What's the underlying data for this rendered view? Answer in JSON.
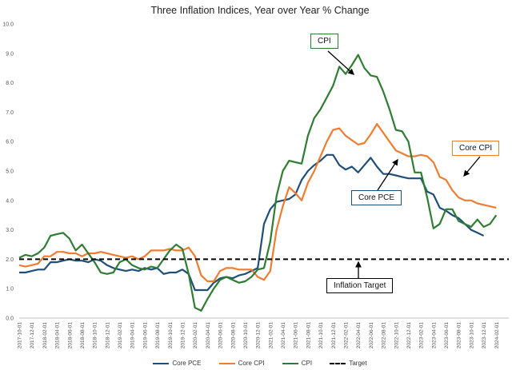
{
  "chart_data": {
    "type": "line",
    "title": "Three Inflation Indices, Year over Year % Change",
    "xlabel": "",
    "ylabel": "",
    "ylim": [
      0.0,
      10.0
    ],
    "yticks": [
      "0.0",
      "1.0",
      "2.0",
      "3.0",
      "4.0",
      "5.0",
      "6.0",
      "7.0",
      "8.0",
      "9.0",
      "10.0"
    ],
    "x_tick_labels": [
      "2017-10-01",
      "2017-12-01",
      "2018-02-01",
      "2018-04-01",
      "2018-06-01",
      "2018-08-01",
      "2018-10-01",
      "2018-12-01",
      "2019-02-01",
      "2019-04-01",
      "2019-06-01",
      "2019-08-01",
      "2019-10-01",
      "2019-12-01",
      "2020-02-01",
      "2020-04-01",
      "2020-06-01",
      "2020-08-01",
      "2020-10-01",
      "2020-12-01",
      "2021-02-01",
      "2021-04-01",
      "2021-06-01",
      "2021-08-01",
      "2021-10-01",
      "2021-12-01",
      "2022-02-01",
      "2022-04-01",
      "2022-06-01",
      "2022-08-01",
      "2022-10-01",
      "2022-12-01",
      "2023-02-01",
      "2023-04-01",
      "2023-06-01",
      "2023-08-01",
      "2023-10-01",
      "2023-12-01",
      "2024-02-01"
    ],
    "grid": false,
    "legend_position": "bottom",
    "series": [
      {
        "name": "Core PCE",
        "color": "#1f4e79",
        "start": "2017-10",
        "values": [
          1.55,
          1.55,
          1.6,
          1.65,
          1.65,
          1.9,
          1.9,
          1.95,
          2.0,
          1.95,
          1.95,
          1.9,
          2.0,
          1.95,
          1.8,
          1.7,
          1.65,
          1.6,
          1.65,
          1.6,
          1.7,
          1.65,
          1.7,
          1.5,
          1.55,
          1.55,
          1.65,
          1.5,
          0.95,
          0.95,
          0.95,
          1.2,
          1.35,
          1.4,
          1.35,
          1.45,
          1.5,
          1.6,
          1.7,
          3.2,
          3.7,
          3.95,
          4.0,
          4.05,
          4.2,
          4.7,
          5.0,
          5.2,
          5.35,
          5.55,
          5.55,
          5.2,
          5.05,
          5.15,
          4.95,
          5.2,
          5.45,
          5.15,
          4.9,
          4.9,
          4.85,
          4.8,
          4.75,
          4.75,
          4.75,
          4.3,
          4.2,
          3.75,
          3.65,
          3.5,
          3.4,
          3.2,
          3.0,
          2.9,
          2.8
        ]
      },
      {
        "name": "Core CPI",
        "color": "#ed7d31",
        "start": "2017-10",
        "values": [
          1.8,
          1.75,
          1.8,
          1.85,
          2.1,
          2.1,
          2.25,
          2.25,
          2.2,
          2.2,
          2.1,
          2.2,
          2.2,
          2.25,
          2.2,
          2.15,
          2.1,
          2.05,
          2.1,
          2.0,
          2.1,
          2.3,
          2.3,
          2.3,
          2.35,
          2.3,
          2.3,
          2.4,
          2.1,
          1.45,
          1.25,
          1.25,
          1.6,
          1.7,
          1.7,
          1.65,
          1.65,
          1.65,
          1.4,
          1.3,
          1.6,
          3.0,
          3.8,
          4.45,
          4.25,
          4.0,
          4.6,
          5.0,
          5.5,
          6.0,
          6.4,
          6.45,
          6.2,
          6.05,
          5.9,
          5.95,
          6.25,
          6.6,
          6.3,
          6.0,
          5.7,
          5.6,
          5.5,
          5.5,
          5.55,
          5.5,
          5.3,
          4.8,
          4.7,
          4.35,
          4.1,
          4.0,
          4.0,
          3.9,
          3.85,
          3.8,
          3.75
        ]
      },
      {
        "name": "CPI",
        "color": "#2e7d32",
        "start": "2017-10",
        "values": [
          2.05,
          2.15,
          2.1,
          2.2,
          2.4,
          2.8,
          2.85,
          2.9,
          2.7,
          2.3,
          2.5,
          2.2,
          1.9,
          1.55,
          1.5,
          1.55,
          1.9,
          2.0,
          1.8,
          1.7,
          1.65,
          1.75,
          1.7,
          2.0,
          2.3,
          2.5,
          2.35,
          1.5,
          0.35,
          0.25,
          0.65,
          1.0,
          1.3,
          1.4,
          1.3,
          1.2,
          1.25,
          1.4,
          1.65,
          1.7,
          2.6,
          4.15,
          5.0,
          5.35,
          5.3,
          5.25,
          6.2,
          6.8,
          7.1,
          7.5,
          7.9,
          8.55,
          8.3,
          8.6,
          8.95,
          8.5,
          8.25,
          8.2,
          7.7,
          7.1,
          6.4,
          6.35,
          6.0,
          4.95,
          4.95,
          4.1,
          3.05,
          3.2,
          3.7,
          3.7,
          3.3,
          3.2,
          3.1,
          3.35,
          3.1,
          3.2,
          3.5
        ]
      },
      {
        "name": "Target",
        "color": "#000000",
        "dashed": true,
        "values": [
          2.0,
          2.0
        ]
      }
    ],
    "annotations": [
      {
        "text": "CPI",
        "border": "#2e7d32"
      },
      {
        "text": "Core CPI",
        "border": "#ed7d31"
      },
      {
        "text": "Core PCE",
        "border": "#1f4e79"
      },
      {
        "text": "Inflation Target",
        "border": "#000000"
      }
    ]
  }
}
